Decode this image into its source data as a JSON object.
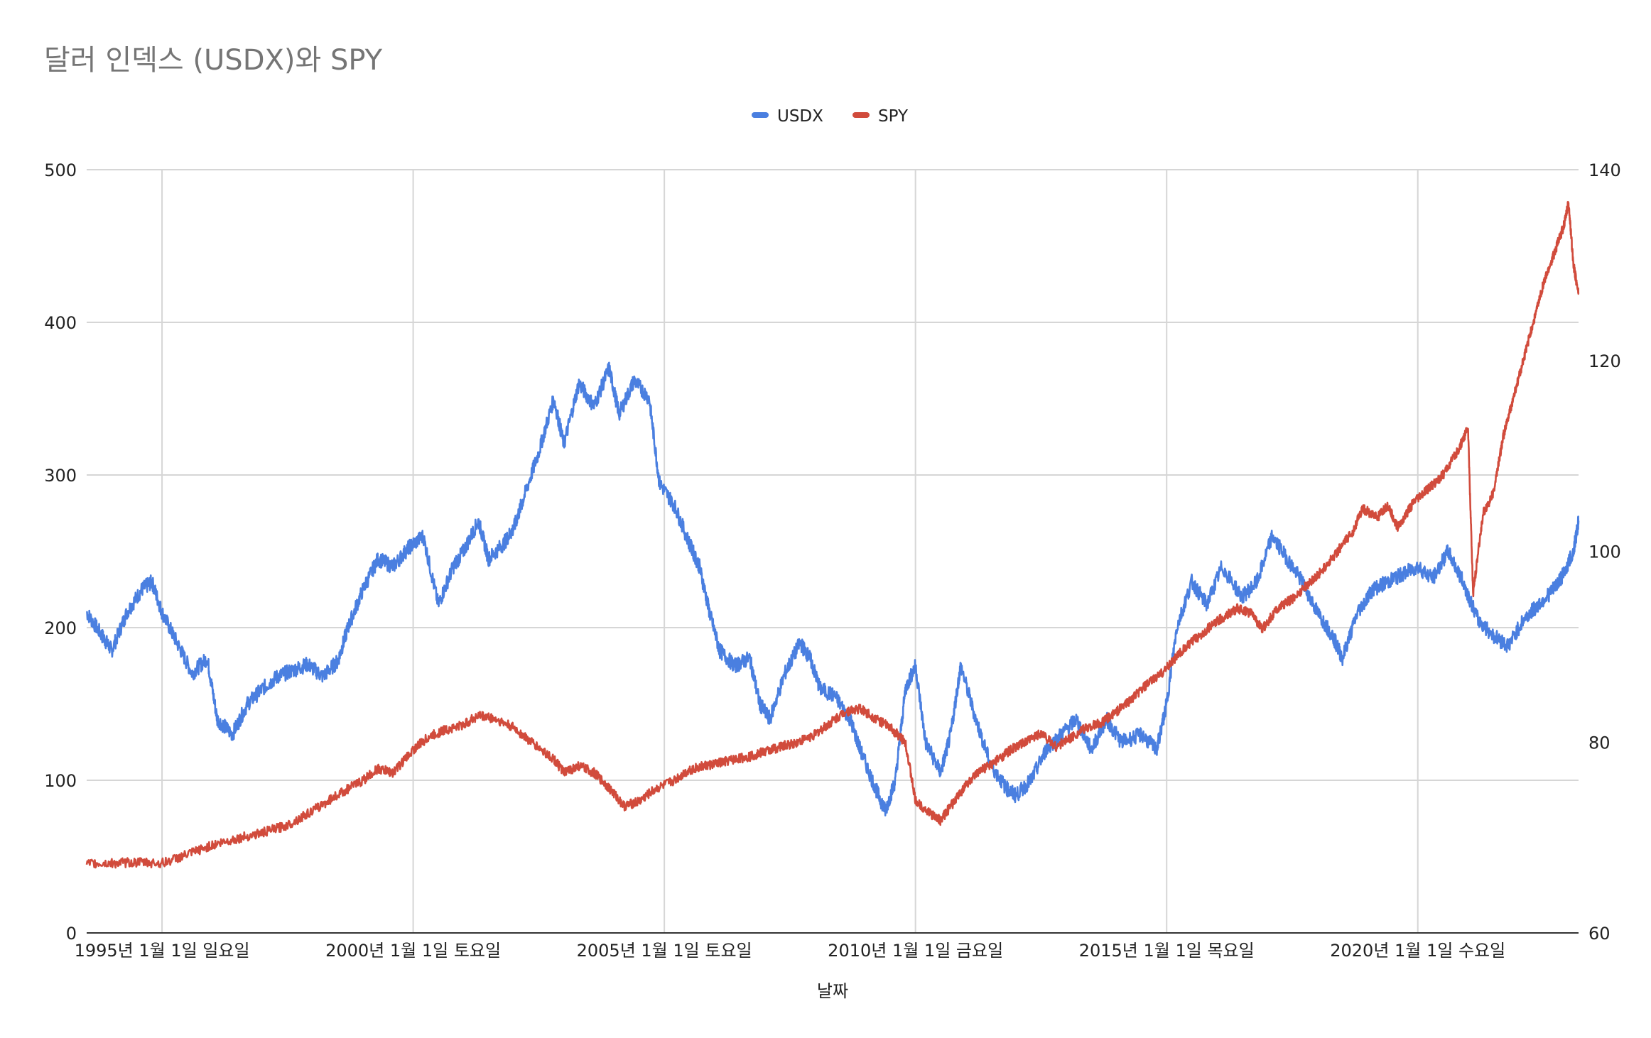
{
  "chart_data": {
    "type": "line",
    "title": "달러 인덱스 (USDX)와 SPY",
    "xlabel": "날짜",
    "ylabel_left": "",
    "ylabel_right": "",
    "x_range": [
      1993.5,
      2023.2
    ],
    "ylim_left": [
      0,
      500
    ],
    "ylim_right": [
      60,
      140
    ],
    "y_ticks_left": [
      "0",
      "100",
      "200",
      "300",
      "400",
      "500"
    ],
    "y_ticks_right": [
      "60",
      "80",
      "100",
      "120",
      "140"
    ],
    "x_tick_labels": [
      {
        "x": 1995,
        "label": "1995년 1월 1일 일요일"
      },
      {
        "x": 2000,
        "label": "2000년 1월 1일 토요일"
      },
      {
        "x": 2005,
        "label": "2005년 1월 1일 토요일"
      },
      {
        "x": 2010,
        "label": "2010년 1월 1일 금요일"
      },
      {
        "x": 2015,
        "label": "2015년 1월 1일 목요일"
      },
      {
        "x": 2020,
        "label": "2020년 1월 1일 수요일"
      }
    ],
    "grid": true,
    "legend_position": "top",
    "series": [
      {
        "name": "USDX",
        "axis": "left",
        "color": "#4a7fe0",
        "points": [
          [
            1993.5,
            210
          ],
          [
            1993.8,
            195
          ],
          [
            1994.0,
            185
          ],
          [
            1994.3,
            210
          ],
          [
            1994.6,
            225
          ],
          [
            1994.8,
            230
          ],
          [
            1995.0,
            210
          ],
          [
            1995.3,
            190
          ],
          [
            1995.6,
            170
          ],
          [
            1995.9,
            180
          ],
          [
            1996.1,
            140
          ],
          [
            1996.4,
            130
          ],
          [
            1996.7,
            150
          ],
          [
            1997.0,
            160
          ],
          [
            1997.3,
            168
          ],
          [
            1997.6,
            172
          ],
          [
            1997.9,
            176
          ],
          [
            1998.2,
            168
          ],
          [
            1998.5,
            178
          ],
          [
            1998.7,
            200
          ],
          [
            1999.0,
            225
          ],
          [
            1999.3,
            245
          ],
          [
            1999.6,
            240
          ],
          [
            1999.9,
            252
          ],
          [
            2000.2,
            260
          ],
          [
            2000.5,
            215
          ],
          [
            2000.8,
            240
          ],
          [
            2001.0,
            250
          ],
          [
            2001.3,
            270
          ],
          [
            2001.5,
            245
          ],
          [
            2001.8,
            255
          ],
          [
            2002.0,
            265
          ],
          [
            2002.2,
            285
          ],
          [
            2002.5,
            315
          ],
          [
            2002.8,
            350
          ],
          [
            2003.0,
            320
          ],
          [
            2003.3,
            360
          ],
          [
            2003.6,
            345
          ],
          [
            2003.9,
            370
          ],
          [
            2004.1,
            340
          ],
          [
            2004.4,
            362
          ],
          [
            2004.7,
            350
          ],
          [
            2004.9,
            295
          ],
          [
            2005.2,
            280
          ],
          [
            2005.5,
            255
          ],
          [
            2005.7,
            240
          ],
          [
            2005.9,
            210
          ],
          [
            2006.1,
            185
          ],
          [
            2006.4,
            175
          ],
          [
            2006.7,
            180
          ],
          [
            2006.9,
            150
          ],
          [
            2007.1,
            140
          ],
          [
            2007.4,
            170
          ],
          [
            2007.7,
            190
          ],
          [
            2007.9,
            180
          ],
          [
            2008.1,
            160
          ],
          [
            2008.4,
            155
          ],
          [
            2008.7,
            140
          ],
          [
            2008.9,
            120
          ],
          [
            2009.2,
            95
          ],
          [
            2009.4,
            80
          ],
          [
            2009.6,
            100
          ],
          [
            2009.8,
            160
          ],
          [
            2010.0,
            175
          ],
          [
            2010.2,
            125
          ],
          [
            2010.5,
            105
          ],
          [
            2010.7,
            130
          ],
          [
            2010.9,
            175
          ],
          [
            2011.2,
            140
          ],
          [
            2011.5,
            110
          ],
          [
            2011.8,
            95
          ],
          [
            2012.0,
            90
          ],
          [
            2012.3,
            100
          ],
          [
            2012.6,
            120
          ],
          [
            2012.9,
            130
          ],
          [
            2013.2,
            140
          ],
          [
            2013.5,
            120
          ],
          [
            2013.8,
            140
          ],
          [
            2014.1,
            125
          ],
          [
            2014.5,
            130
          ],
          [
            2014.8,
            120
          ],
          [
            2015.0,
            150
          ],
          [
            2015.2,
            200
          ],
          [
            2015.5,
            230
          ],
          [
            2015.8,
            215
          ],
          [
            2016.1,
            240
          ],
          [
            2016.5,
            220
          ],
          [
            2016.8,
            230
          ],
          [
            2017.1,
            260
          ],
          [
            2017.4,
            245
          ],
          [
            2017.7,
            230
          ],
          [
            2018.0,
            210
          ],
          [
            2018.3,
            195
          ],
          [
            2018.5,
            180
          ],
          [
            2018.8,
            210
          ],
          [
            2019.1,
            225
          ],
          [
            2019.4,
            230
          ],
          [
            2019.7,
            235
          ],
          [
            2020.0,
            240
          ],
          [
            2020.3,
            232
          ],
          [
            2020.6,
            250
          ],
          [
            2020.9,
            230
          ],
          [
            2021.2,
            205
          ],
          [
            2021.5,
            195
          ],
          [
            2021.8,
            188
          ],
          [
            2022.1,
            205
          ],
          [
            2022.4,
            215
          ],
          [
            2022.7,
            225
          ],
          [
            2022.9,
            235
          ],
          [
            2023.1,
            250
          ],
          [
            2023.2,
            270
          ]
        ]
      },
      {
        "name": "SPY",
        "axis": "right",
        "color": "#d14b3c",
        "points": [
          [
            1993.5,
            67.2
          ],
          [
            1994.0,
            67.3
          ],
          [
            1994.5,
            67.4
          ],
          [
            1995.0,
            67.3
          ],
          [
            1995.5,
            68.2
          ],
          [
            1996.0,
            69.2
          ],
          [
            1996.5,
            69.9
          ],
          [
            1997.0,
            70.5
          ],
          [
            1997.5,
            71.3
          ],
          [
            1998.0,
            72.8
          ],
          [
            1998.5,
            74.5
          ],
          [
            1999.0,
            76.0
          ],
          [
            1999.3,
            77.2
          ],
          [
            1999.6,
            76.8
          ],
          [
            2000.0,
            79.2
          ],
          [
            2000.3,
            80.5
          ],
          [
            2000.6,
            81.2
          ],
          [
            2001.0,
            81.8
          ],
          [
            2001.3,
            82.8
          ],
          [
            2001.6,
            82.5
          ],
          [
            2002.0,
            81.5
          ],
          [
            2002.4,
            79.8
          ],
          [
            2002.8,
            78.2
          ],
          [
            2003.0,
            76.8
          ],
          [
            2003.3,
            77.5
          ],
          [
            2003.6,
            76.8
          ],
          [
            2003.9,
            75.2
          ],
          [
            2004.2,
            73.3
          ],
          [
            2004.5,
            73.8
          ],
          [
            2004.8,
            75.0
          ],
          [
            2005.2,
            76.0
          ],
          [
            2005.5,
            77.1
          ],
          [
            2005.8,
            77.5
          ],
          [
            2006.1,
            77.8
          ],
          [
            2006.4,
            78.2
          ],
          [
            2006.7,
            78.5
          ],
          [
            2007.0,
            79.0
          ],
          [
            2007.3,
            79.5
          ],
          [
            2007.6,
            79.9
          ],
          [
            2008.0,
            80.8
          ],
          [
            2008.3,
            82.0
          ],
          [
            2008.6,
            83.2
          ],
          [
            2008.9,
            83.5
          ],
          [
            2009.2,
            82.5
          ],
          [
            2009.5,
            81.5
          ],
          [
            2009.8,
            80.0
          ],
          [
            2010.0,
            73.8
          ],
          [
            2010.3,
            72.5
          ],
          [
            2010.5,
            71.8
          ],
          [
            2010.8,
            74.0
          ],
          [
            2011.0,
            75.5
          ],
          [
            2011.3,
            77.0
          ],
          [
            2011.6,
            78.0
          ],
          [
            2011.9,
            79.2
          ],
          [
            2012.2,
            80.0
          ],
          [
            2012.5,
            81.0
          ],
          [
            2012.8,
            79.5
          ],
          [
            2013.1,
            80.5
          ],
          [
            2013.4,
            81.5
          ],
          [
            2013.7,
            82.0
          ],
          [
            2014.0,
            83.2
          ],
          [
            2014.3,
            84.5
          ],
          [
            2014.6,
            86.0
          ],
          [
            2014.9,
            87.2
          ],
          [
            2015.2,
            89.0
          ],
          [
            2015.5,
            90.5
          ],
          [
            2015.8,
            91.8
          ],
          [
            2016.1,
            93.0
          ],
          [
            2016.4,
            94.0
          ],
          [
            2016.7,
            93.5
          ],
          [
            2016.9,
            91.8
          ],
          [
            2017.2,
            94.0
          ],
          [
            2017.5,
            95.0
          ],
          [
            2017.8,
            96.5
          ],
          [
            2018.1,
            98.0
          ],
          [
            2018.4,
            100.0
          ],
          [
            2018.7,
            102.0
          ],
          [
            2018.9,
            104.5
          ],
          [
            2019.2,
            103.5
          ],
          [
            2019.4,
            104.8
          ],
          [
            2019.6,
            102.5
          ],
          [
            2019.9,
            105.0
          ],
          [
            2020.2,
            106.5
          ],
          [
            2020.5,
            108.0
          ],
          [
            2020.8,
            110.5
          ],
          [
            2021.0,
            113.0
          ],
          [
            2021.1,
            95.5
          ],
          [
            2021.3,
            104.0
          ],
          [
            2021.5,
            106.0
          ],
          [
            2021.7,
            112.0
          ],
          [
            2021.9,
            116.0
          ],
          [
            2022.1,
            120.0
          ],
          [
            2022.3,
            124.0
          ],
          [
            2022.5,
            128.0
          ],
          [
            2022.7,
            131.0
          ],
          [
            2022.9,
            134.0
          ],
          [
            2023.0,
            136.5
          ],
          [
            2023.1,
            130.0
          ],
          [
            2023.2,
            127.0
          ]
        ]
      }
    ]
  }
}
